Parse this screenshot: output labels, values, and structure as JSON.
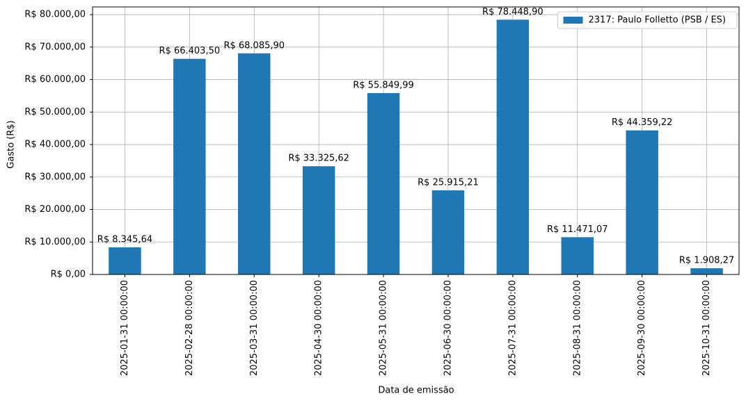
{
  "chart_data": {
    "type": "bar",
    "xlabel": "Data de emissão",
    "ylabel": "Gasto (R$)",
    "categories": [
      "2025-01-31 00:00:00",
      "2025-02-28 00:00:00",
      "2025-03-31 00:00:00",
      "2025-04-30 00:00:00",
      "2025-05-31 00:00:00",
      "2025-06-30 00:00:00",
      "2025-07-31 00:00:00",
      "2025-08-31 00:00:00",
      "2025-09-30 00:00:00",
      "2025-10-31 00:00:00"
    ],
    "series": [
      {
        "name": "2317: Paulo Folletto (PSB / ES)",
        "color": "#1f77b4",
        "values": [
          8345.64,
          66403.5,
          68085.9,
          33325.62,
          55849.99,
          25915.21,
          78448.9,
          11471.07,
          44359.22,
          1908.27
        ],
        "value_labels": [
          "R$ 8.345,64",
          "R$ 66.403,50",
          "R$ 68.085,90",
          "R$ 33.325,62",
          "R$ 55.849,99",
          "R$ 25.915,21",
          "R$ 78.448,90",
          "R$ 11.471,07",
          "R$ 44.359,22",
          "R$ 1.908,27"
        ]
      }
    ],
    "ylim": [
      0,
      82371
    ],
    "yticks": [
      {
        "value": 0,
        "label": "R$ 0,00"
      },
      {
        "value": 10000,
        "label": "R$ 10.000,00"
      },
      {
        "value": 20000,
        "label": "R$ 20.000,00"
      },
      {
        "value": 30000,
        "label": "R$ 30.000,00"
      },
      {
        "value": 40000,
        "label": "R$ 40.000,00"
      },
      {
        "value": 50000,
        "label": "R$ 50.000,00"
      },
      {
        "value": 60000,
        "label": "R$ 60.000,00"
      },
      {
        "value": 70000,
        "label": "R$ 70.000,00"
      },
      {
        "value": 80000,
        "label": "R$ 80.000,00"
      }
    ],
    "grid": true,
    "legend": "upper right"
  }
}
